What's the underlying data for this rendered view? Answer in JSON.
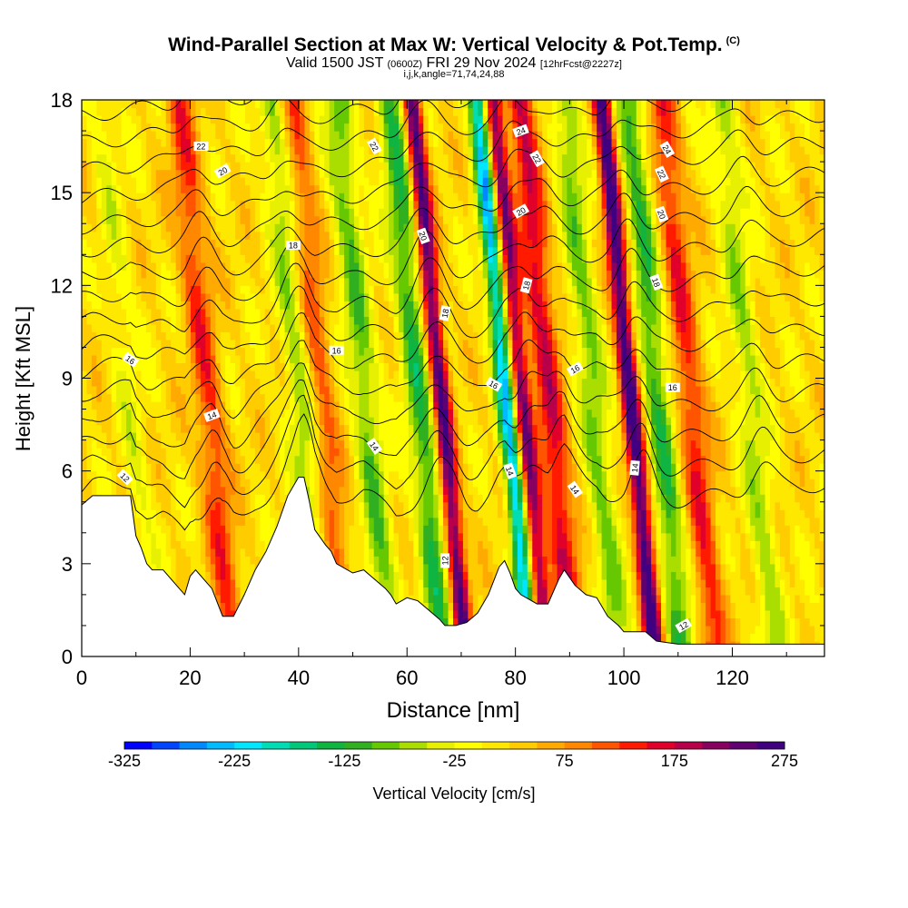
{
  "header": {
    "title": "Wind-Parallel Section at Max W: Vertical Velocity & Pot.Temp.",
    "copyright": "(C)",
    "valid_main": "Valid 1500 JST",
    "valid_utc": "(0600Z)",
    "valid_date": "FRI 29 Nov 2024",
    "fcst": "[12hrFcst@2227z]",
    "params": "i,j,k,angle=71,74,24,88"
  },
  "chart_data": {
    "type": "heatmap",
    "xlabel": "Distance [nm]",
    "ylabel": "Height [Kft MSL]",
    "xlim": [
      0,
      137
    ],
    "ylim": [
      0,
      18
    ],
    "xticks": [
      0,
      20,
      40,
      60,
      80,
      100,
      120
    ],
    "yticks": [
      0,
      3,
      6,
      9,
      12,
      15,
      18
    ],
    "colorbar": {
      "label": "Vertical Velocity [cm/s]",
      "ticks": [
        -325,
        -225,
        -125,
        -25,
        75,
        175,
        275
      ],
      "min": -325,
      "max": 275,
      "colors": [
        "#0000ff",
        "#0044ff",
        "#0088ff",
        "#00bbff",
        "#00e6ff",
        "#00dcb4",
        "#00c878",
        "#10b440",
        "#30b020",
        "#66c800",
        "#aadd00",
        "#e6f000",
        "#ffff00",
        "#ffe800",
        "#ffcc00",
        "#ffaa00",
        "#ff8800",
        "#ff5500",
        "#ff1a00",
        "#e0002a",
        "#b8004a",
        "#880060",
        "#600070",
        "#400080"
      ]
    },
    "vertical_velocity_features": [
      {
        "kind": "updraft",
        "x": 8,
        "peak": 30
      },
      {
        "kind": "downdraft",
        "x": 9,
        "peak": -70
      },
      {
        "kind": "updraft",
        "x": 24,
        "peak": 110
      },
      {
        "kind": "downdraft",
        "x": 41,
        "peak": -90
      },
      {
        "kind": "updraft",
        "x": 45,
        "peak": 90
      },
      {
        "kind": "downdraft",
        "x": 53,
        "peak": -110
      },
      {
        "kind": "downdraft",
        "x": 63,
        "peak": -140
      },
      {
        "kind": "updraft",
        "x": 67,
        "peak": 240
      },
      {
        "kind": "downdraft",
        "x": 79,
        "peak": -250
      },
      {
        "kind": "updraft",
        "x": 82,
        "peak": 200
      },
      {
        "kind": "updraft",
        "x": 87,
        "peak": 150
      },
      {
        "kind": "downdraft",
        "x": 95,
        "peak": -100
      },
      {
        "kind": "updraft",
        "x": 102,
        "peak": 260
      },
      {
        "kind": "downdraft",
        "x": 107,
        "peak": -130
      },
      {
        "kind": "updraft",
        "x": 113,
        "peak": 120
      },
      {
        "kind": "downdraft",
        "x": 124,
        "peak": -80
      }
    ],
    "terrain": [
      [
        0,
        4.9
      ],
      [
        2,
        5.2
      ],
      [
        9,
        5.2
      ],
      [
        10,
        3.9
      ],
      [
        11,
        3.5
      ],
      [
        12,
        3.0
      ],
      [
        13,
        2.8
      ],
      [
        15,
        2.8
      ],
      [
        17,
        2.4
      ],
      [
        19,
        2.0
      ],
      [
        20,
        2.6
      ],
      [
        21,
        2.8
      ],
      [
        22,
        2.6
      ],
      [
        24,
        2.2
      ],
      [
        26,
        1.3
      ],
      [
        28,
        1.3
      ],
      [
        30,
        2.0
      ],
      [
        32,
        2.8
      ],
      [
        34,
        3.4
      ],
      [
        36,
        4.2
      ],
      [
        38,
        5.2
      ],
      [
        40,
        5.8
      ],
      [
        41,
        5.8
      ],
      [
        42,
        5.0
      ],
      [
        43,
        4.1
      ],
      [
        45,
        3.6
      ],
      [
        46,
        3.4
      ],
      [
        47,
        3.0
      ],
      [
        48,
        2.9
      ],
      [
        50,
        2.7
      ],
      [
        52,
        2.8
      ],
      [
        54,
        2.5
      ],
      [
        56,
        2.2
      ],
      [
        57,
        2.0
      ],
      [
        58,
        1.7
      ],
      [
        60,
        1.9
      ],
      [
        62,
        1.8
      ],
      [
        64,
        1.5
      ],
      [
        66,
        1.2
      ],
      [
        67,
        1.0
      ],
      [
        69,
        1.0
      ],
      [
        71,
        1.1
      ],
      [
        73,
        1.4
      ],
      [
        75,
        2.0
      ],
      [
        77,
        2.9
      ],
      [
        78,
        3.1
      ],
      [
        79,
        2.7
      ],
      [
        80,
        2.2
      ],
      [
        81,
        2.0
      ],
      [
        82,
        1.9
      ],
      [
        84,
        1.7
      ],
      [
        86,
        1.7
      ],
      [
        88,
        2.5
      ],
      [
        89,
        2.8
      ],
      [
        91,
        2.3
      ],
      [
        93,
        2.0
      ],
      [
        95,
        1.9
      ],
      [
        97,
        1.3
      ],
      [
        99,
        1.0
      ],
      [
        100,
        0.8
      ],
      [
        104,
        0.8
      ],
      [
        106,
        0.5
      ],
      [
        110,
        0.4
      ],
      [
        137,
        0.4
      ]
    ],
    "contour_labels": [
      {
        "text": "22",
        "x": 22,
        "y": 16.5,
        "angle": 0
      },
      {
        "text": "20",
        "x": 26,
        "y": 15.7,
        "angle": -30
      },
      {
        "text": "18",
        "x": 39,
        "y": 13.3,
        "angle": 0
      },
      {
        "text": "16",
        "x": 9,
        "y": 9.6,
        "angle": 35
      },
      {
        "text": "16",
        "x": 47,
        "y": 9.9,
        "angle": 0
      },
      {
        "text": "14",
        "x": 24,
        "y": 7.8,
        "angle": -20
      },
      {
        "text": "14",
        "x": 54,
        "y": 6.8,
        "angle": 55
      },
      {
        "text": "12",
        "x": 8,
        "y": 5.8,
        "angle": 45
      },
      {
        "text": "22",
        "x": 54,
        "y": 16.5,
        "angle": 60
      },
      {
        "text": "20",
        "x": 63,
        "y": 13.6,
        "angle": 70
      },
      {
        "text": "18",
        "x": 67,
        "y": 11.1,
        "angle": -80
      },
      {
        "text": "16",
        "x": 76,
        "y": 8.8,
        "angle": 30
      },
      {
        "text": "14",
        "x": 79,
        "y": 6.0,
        "angle": 70
      },
      {
        "text": "12",
        "x": 67,
        "y": 3.1,
        "angle": -90
      },
      {
        "text": "24",
        "x": 81,
        "y": 17.0,
        "angle": -20
      },
      {
        "text": "22",
        "x": 84,
        "y": 16.1,
        "angle": 60
      },
      {
        "text": "20",
        "x": 81,
        "y": 14.4,
        "angle": -30
      },
      {
        "text": "18",
        "x": 82,
        "y": 12.0,
        "angle": -75
      },
      {
        "text": "16",
        "x": 91,
        "y": 9.3,
        "angle": -30
      },
      {
        "text": "14",
        "x": 91,
        "y": 5.4,
        "angle": 55
      },
      {
        "text": "14",
        "x": 102,
        "y": 6.1,
        "angle": -85
      },
      {
        "text": "24",
        "x": 108,
        "y": 16.4,
        "angle": 60
      },
      {
        "text": "22",
        "x": 107,
        "y": 15.6,
        "angle": 65
      },
      {
        "text": "20",
        "x": 107,
        "y": 14.3,
        "angle": 70
      },
      {
        "text": "18",
        "x": 106,
        "y": 12.1,
        "angle": 70
      },
      {
        "text": "16",
        "x": 109,
        "y": 8.7,
        "angle": 0
      },
      {
        "text": "12",
        "x": 111,
        "y": 1.0,
        "angle": -30
      }
    ]
  }
}
